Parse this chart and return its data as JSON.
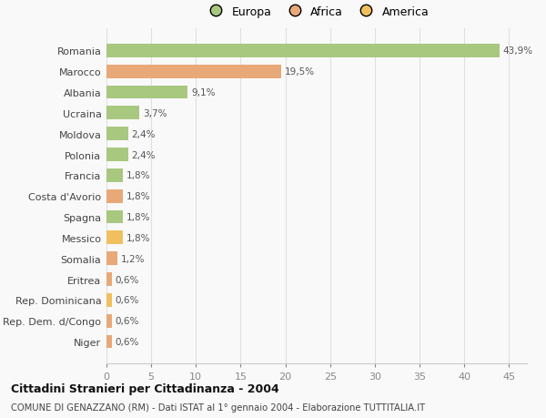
{
  "categories": [
    "Romania",
    "Marocco",
    "Albania",
    "Ucraina",
    "Moldova",
    "Polonia",
    "Francia",
    "Costa d'Avorio",
    "Spagna",
    "Messico",
    "Somalia",
    "Eritrea",
    "Rep. Dominicana",
    "Rep. Dem. d/Congo",
    "Niger"
  ],
  "values": [
    43.9,
    19.5,
    9.1,
    3.7,
    2.4,
    2.4,
    1.8,
    1.8,
    1.8,
    1.8,
    1.2,
    0.6,
    0.6,
    0.6,
    0.6
  ],
  "labels": [
    "43,9%",
    "19,5%",
    "9,1%",
    "3,7%",
    "2,4%",
    "2,4%",
    "1,8%",
    "1,8%",
    "1,8%",
    "1,8%",
    "1,2%",
    "0,6%",
    "0,6%",
    "0,6%",
    "0,6%"
  ],
  "colors": [
    "#a8c880",
    "#e8a878",
    "#a8c880",
    "#a8c880",
    "#a8c880",
    "#a8c880",
    "#a8c880",
    "#e8a878",
    "#a8c880",
    "#f0c060",
    "#e8a878",
    "#e8a878",
    "#f0c060",
    "#e8a878",
    "#e8a878"
  ],
  "legend_labels": [
    "Europa",
    "Africa",
    "America"
  ],
  "legend_colors": [
    "#a8c880",
    "#e8a878",
    "#f0c060"
  ],
  "title": "Cittadini Stranieri per Cittadinanza - 2004",
  "subtitle": "COMUNE DI GENAZZANO (RM) - Dati ISTAT al 1° gennaio 2004 - Elaborazione TUTTITALIA.IT",
  "xlim": [
    0,
    47
  ],
  "xticks": [
    0,
    5,
    10,
    15,
    20,
    25,
    30,
    35,
    40,
    45
  ],
  "background_color": "#f9f9f9",
  "grid_color": "#e0e0e0"
}
